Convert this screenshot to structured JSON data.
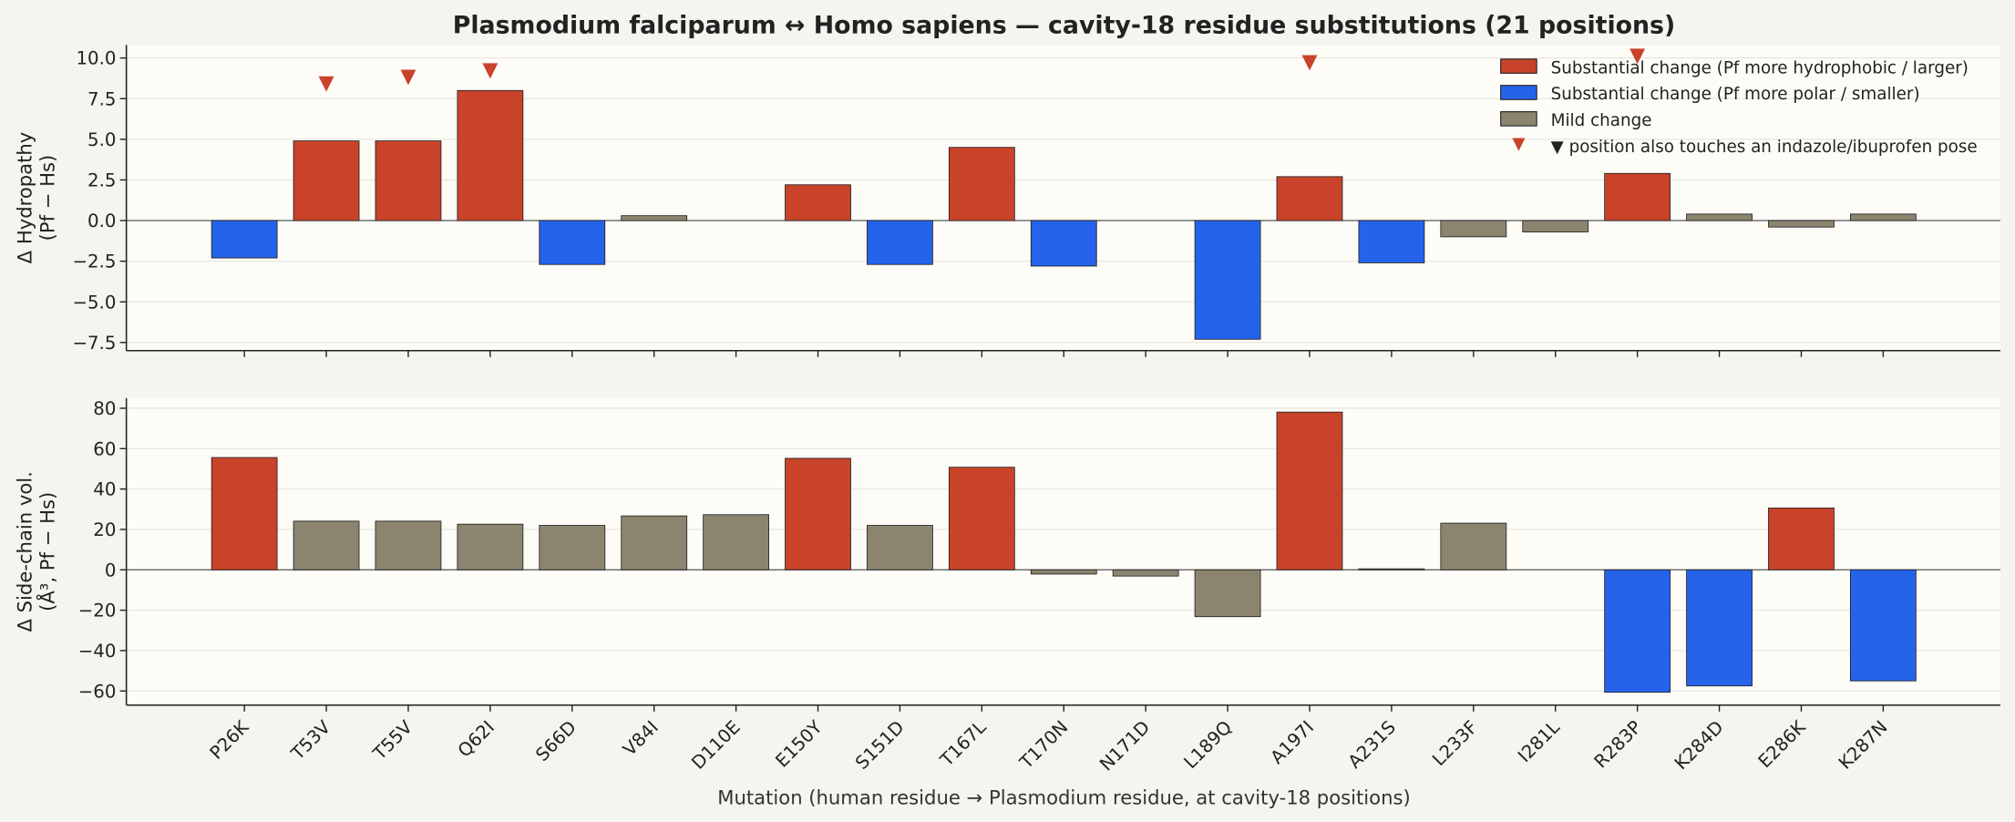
{
  "title": "Plasmodium falciparum ↔ Homo sapiens — cavity-18 residue substitutions  (21 positions)",
  "xlabel": "Mutation  (human residue → Plasmodium residue, at cavity-18 positions)",
  "chart_data": [
    {
      "type": "bar",
      "ylabel": [
        "Δ Hydropathy",
        "(Pf − Hs)"
      ],
      "categories": [
        "P26K",
        "T53V",
        "T55V",
        "Q62I",
        "S66D",
        "V84I",
        "D110E",
        "E150Y",
        "S151D",
        "T167L",
        "T170N",
        "N171D",
        "L189Q",
        "A197I",
        "A231S",
        "L233F",
        "I281L",
        "R283P",
        "K284D",
        "E286K",
        "K287N"
      ],
      "values": [
        -2.3,
        4.9,
        4.9,
        8.0,
        -2.7,
        0.3,
        0.0,
        2.2,
        -2.7,
        4.5,
        -2.8,
        0.0,
        -7.3,
        2.7,
        -2.6,
        -1.0,
        -0.7,
        2.9,
        0.4,
        -0.4,
        0.4
      ],
      "colors": [
        "#2563eb",
        "#c8432a",
        "#c8432a",
        "#c8432a",
        "#2563eb",
        "#8b8570",
        "#8b8570",
        "#c8432a",
        "#2563eb",
        "#c8432a",
        "#2563eb",
        "#8b8570",
        "#2563eb",
        "#c8432a",
        "#2563eb",
        "#8b8570",
        "#8b8570",
        "#c8432a",
        "#8b8570",
        "#8b8570",
        "#8b8570"
      ],
      "pose_markers": {
        "color": "#c8432a",
        "categories": [
          "T53V",
          "T55V",
          "Q62I",
          "A197I",
          "R283P"
        ],
        "values": [
          8.4,
          8.8,
          9.2,
          9.7,
          10.1
        ]
      },
      "legend": [
        {
          "label": "Substantial change (Pf more hydrophobic / larger)",
          "color": "#c8432a",
          "marker": "patch"
        },
        {
          "label": "Substantial change (Pf more polar / smaller)",
          "color": "#2563eb",
          "marker": "patch"
        },
        {
          "label": "Mild change",
          "color": "#8b8570",
          "marker": "patch"
        },
        {
          "label": "▼ position also touches an indazole/ibuprofen pose",
          "color": "#c8432a",
          "marker": "triangle"
        }
      ],
      "legend_loc": "upper right",
      "xlim": [
        -1.44,
        21.43
      ],
      "ylim": [
        -8.0,
        10.8
      ],
      "yticks": [
        {
          "value": -7.5,
          "label": "−7.5"
        },
        {
          "value": -5,
          "label": "−5.0"
        },
        {
          "value": -2.5,
          "label": "−2.5"
        },
        {
          "value": 0,
          "label": "0.0"
        },
        {
          "value": 2.5,
          "label": "2.5"
        },
        {
          "value": 5,
          "label": "5.0"
        },
        {
          "value": 7.5,
          "label": "7.5"
        },
        {
          "value": 10,
          "label": "10.0"
        }
      ],
      "grid": true
    },
    {
      "type": "bar",
      "ylabel": [
        "Δ Side-chain vol.",
        "(Å³, Pf − Hs)"
      ],
      "categories": [
        "P26K",
        "T53V",
        "T55V",
        "Q62I",
        "S66D",
        "V84I",
        "D110E",
        "E150Y",
        "S151D",
        "T167L",
        "T170N",
        "N171D",
        "L189Q",
        "A197I",
        "A231S",
        "L233F",
        "I281L",
        "R283P",
        "K284D",
        "E286K",
        "K287N"
      ],
      "values": [
        55.6,
        24.1,
        24.1,
        22.6,
        22.0,
        26.7,
        27.3,
        55.2,
        22.0,
        50.8,
        -2.1,
        -3.1,
        -23.2,
        78.1,
        0.5,
        23.1,
        0.0,
        -60.6,
        -57.5,
        30.6,
        -55.0
      ],
      "colors": [
        "#c8432a",
        "#8b8570",
        "#8b8570",
        "#8b8570",
        "#8b8570",
        "#8b8570",
        "#8b8570",
        "#c8432a",
        "#8b8570",
        "#c8432a",
        "#8b8570",
        "#8b8570",
        "#8b8570",
        "#c8432a",
        "#8b8570",
        "#8b8570",
        "#8b8570",
        "#2563eb",
        "#2563eb",
        "#c8432a",
        "#2563eb"
      ],
      "xlim": [
        -1.44,
        21.43
      ],
      "ylim": [
        -67,
        85
      ],
      "yticks": [
        {
          "value": -60,
          "label": "−60"
        },
        {
          "value": -40,
          "label": "−40"
        },
        {
          "value": -20,
          "label": "−20"
        },
        0,
        20,
        40,
        60,
        80
      ],
      "grid": true
    }
  ]
}
